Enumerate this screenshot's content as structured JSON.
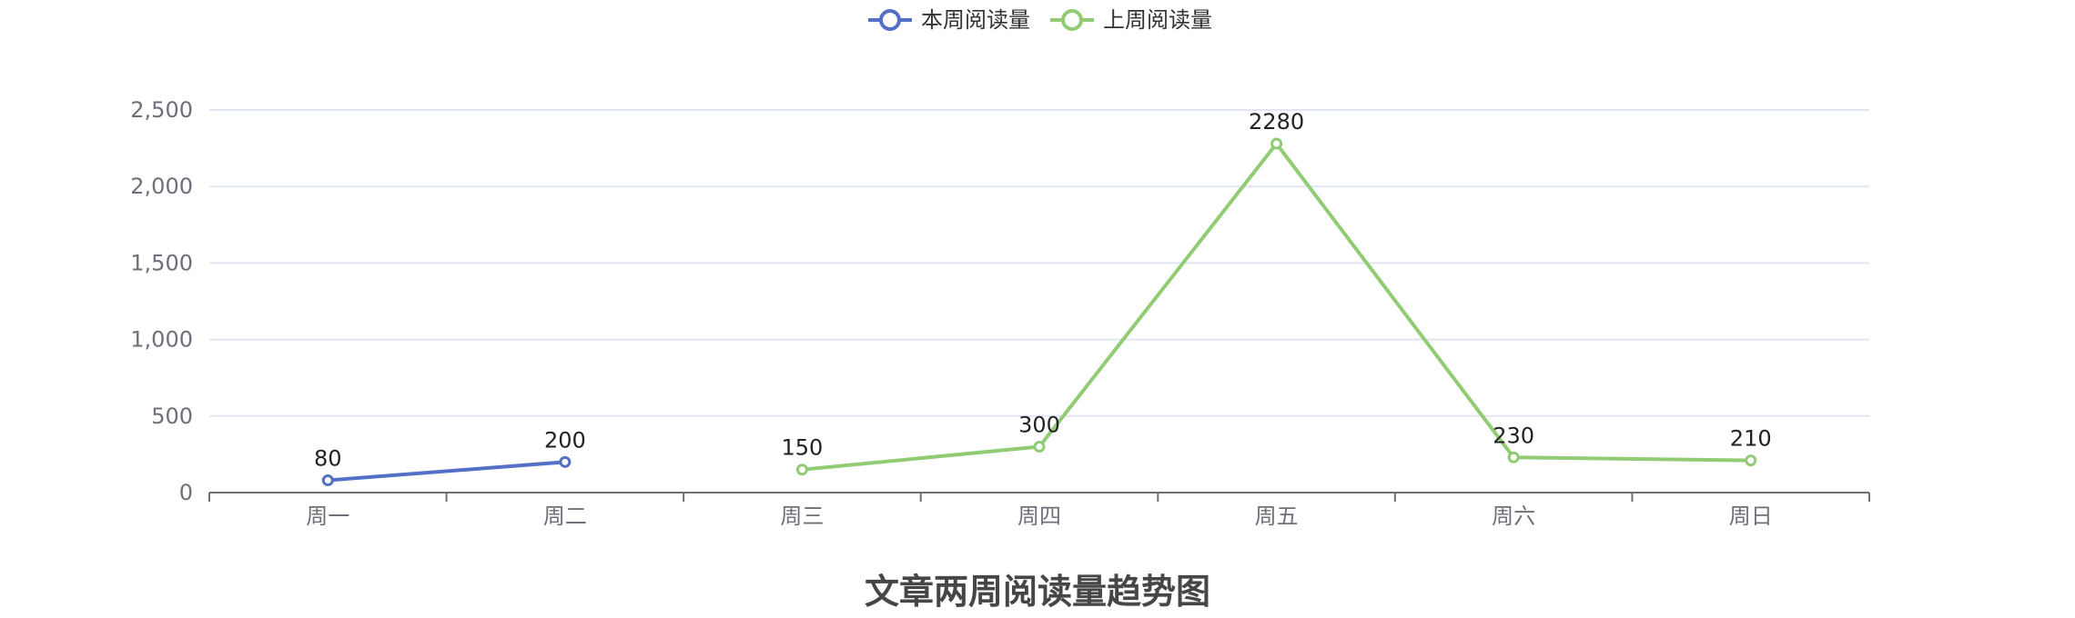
{
  "chart_data": {
    "type": "line",
    "title": "文章两周阅读量趋势图",
    "categories": [
      "周一",
      "周二",
      "周三",
      "周四",
      "周五",
      "周六",
      "周日"
    ],
    "ylim": [
      0,
      2500
    ],
    "yticks": [
      0,
      500,
      1000,
      1500,
      2000,
      2500
    ],
    "ytick_labels": [
      "0",
      "500",
      "1,000",
      "1,500",
      "2,000",
      "2,500"
    ],
    "grid": true,
    "legend": "top-center",
    "series": [
      {
        "name": "本周阅读量",
        "color": "#5470c6",
        "values": [
          80,
          200,
          null,
          null,
          null,
          null,
          null
        ]
      },
      {
        "name": "上周阅读量",
        "color": "#91cc75",
        "values": [
          null,
          null,
          150,
          300,
          2280,
          230,
          210
        ]
      }
    ]
  }
}
